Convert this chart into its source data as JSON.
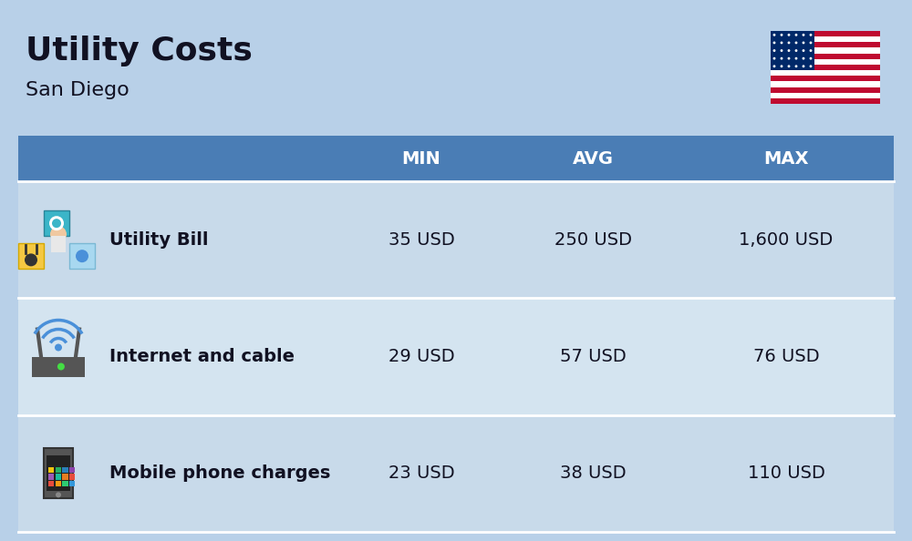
{
  "title": "Utility Costs",
  "subtitle": "San Diego",
  "background_color": "#b8d0e8",
  "header_color": "#4a7db5",
  "header_text_color": "#ffffff",
  "row_color_odd": "#c8daea",
  "row_color_even": "#d4e4f0",
  "divider_color": "#ffffff",
  "text_color": "#111122",
  "rows": [
    {
      "icon_label": "utility",
      "name": "Utility Bill",
      "min": "35 USD",
      "avg": "250 USD",
      "max": "1,600 USD"
    },
    {
      "icon_label": "internet",
      "name": "Internet and cable",
      "min": "29 USD",
      "avg": "57 USD",
      "max": "76 USD"
    },
    {
      "icon_label": "mobile",
      "name": "Mobile phone charges",
      "min": "23 USD",
      "avg": "38 USD",
      "max": "110 USD"
    }
  ],
  "title_fontsize": 26,
  "subtitle_fontsize": 16,
  "header_fontsize": 14,
  "row_fontsize": 14
}
